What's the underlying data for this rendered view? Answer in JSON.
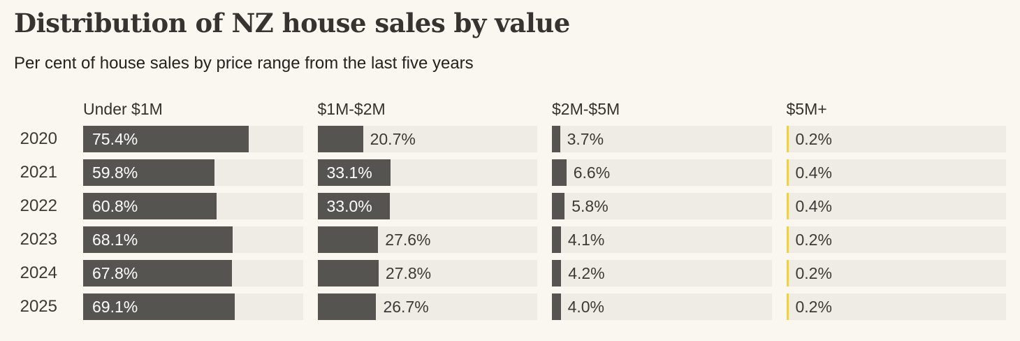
{
  "page": {
    "title": "Distribution of NZ house sales by value",
    "subtitle": "Per cent of house sales by price range from the last five years"
  },
  "colors": {
    "background": "#faf7f0",
    "track": "#efece5",
    "bar_dark": "#565450",
    "bar_yellow": "#e9cf55",
    "heading_text": "#363430",
    "label_text": "#3b3a36",
    "inside_label_text": "#ffffff"
  },
  "chart_data": {
    "type": "bar",
    "orientation": "horizontal",
    "title": "Distribution of NZ house sales by value",
    "subtitle": "Per cent of house sales by price range from the last five years",
    "categories": [
      "2020",
      "2021",
      "2022",
      "2023",
      "2024",
      "2025"
    ],
    "columns": [
      "Under $1M",
      "$1M-$2M",
      "$2M-$5M",
      "$5M+"
    ],
    "value_suffix": "%",
    "xlim": [
      0,
      100
    ],
    "grid": false,
    "legend_position": "column-headers",
    "series": [
      {
        "name": "Under $1M",
        "color": "#565450",
        "values": [
          75.4,
          59.8,
          60.8,
          68.1,
          67.8,
          69.1
        ]
      },
      {
        "name": "$1M-$2M",
        "color": "#565450",
        "values": [
          20.7,
          33.1,
          33.0,
          27.6,
          27.8,
          26.7
        ]
      },
      {
        "name": "$2M-$5M",
        "color": "#565450",
        "values": [
          3.7,
          6.6,
          5.8,
          4.1,
          4.2,
          4.0
        ]
      },
      {
        "name": "$5M+",
        "color": "#e9cf55",
        "values": [
          0.2,
          0.4,
          0.4,
          0.2,
          0.2,
          0.2
        ]
      }
    ]
  }
}
